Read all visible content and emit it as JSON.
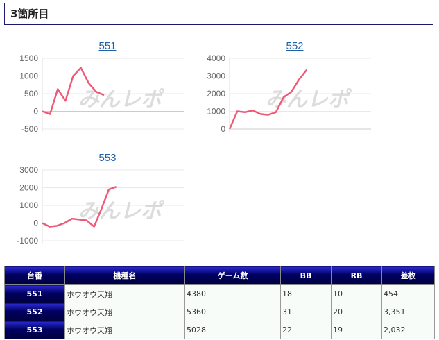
{
  "section_title": "3箇所目",
  "watermark": "みんレポ",
  "chart_data": [
    {
      "type": "line",
      "title": "551",
      "ylim": [
        -500,
        1500
      ],
      "yticks": [
        -500,
        0,
        500,
        1000,
        1500
      ],
      "values": [
        0,
        -80,
        630,
        300,
        1000,
        1230,
        800,
        550,
        460
      ],
      "color": "#ee5a78"
    },
    {
      "type": "line",
      "title": "552",
      "ylim": [
        0,
        4000
      ],
      "yticks": [
        0,
        1000,
        2000,
        3000,
        4000
      ],
      "values": [
        0,
        1000,
        950,
        1050,
        850,
        800,
        950,
        1800,
        2100,
        2800,
        3350
      ],
      "color": "#ee5a78"
    },
    {
      "type": "line",
      "title": "553",
      "ylim": [
        -1000,
        3000
      ],
      "yticks": [
        -1000,
        0,
        1000,
        2000,
        3000
      ],
      "values": [
        0,
        -200,
        -150,
        0,
        250,
        200,
        150,
        -200,
        800,
        1900,
        2050
      ],
      "color": "#ee5a78"
    }
  ],
  "table": {
    "headers": [
      "台番",
      "機種名",
      "ゲーム数",
      "BB",
      "RB",
      "差枚"
    ],
    "rows": [
      [
        "551",
        "ホウオウ天翔",
        "4380",
        "18",
        "10",
        "454"
      ],
      [
        "552",
        "ホウオウ天翔",
        "5360",
        "31",
        "20",
        "3,351"
      ],
      [
        "553",
        "ホウオウ天翔",
        "5028",
        "22",
        "19",
        "2,032"
      ]
    ]
  }
}
